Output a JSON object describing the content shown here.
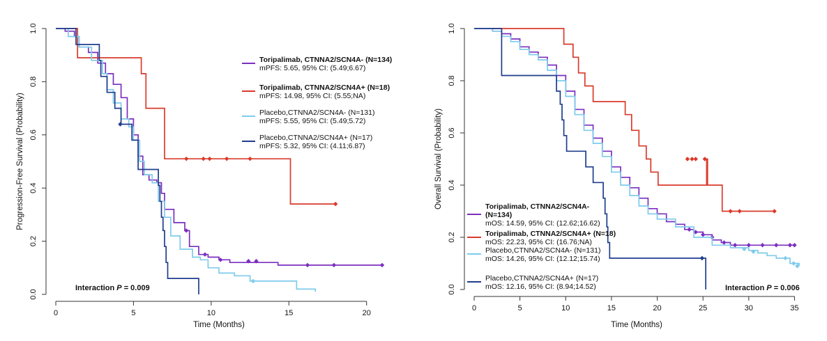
{
  "chart_data": [
    {
      "type": "line",
      "subtype": "kaplan-meier",
      "title": "",
      "xlabel": "Time (Months)",
      "ylabel": "Progression-Free Survival (Probability)",
      "xlim": [
        0,
        21
      ],
      "ylim": [
        0,
        1
      ],
      "xticks": [
        "0",
        "5",
        "10",
        "15",
        "20"
      ],
      "yticks": [
        "0.0",
        "0.2",
        "0.4",
        "0.6",
        "0.8",
        "1.0"
      ],
      "annotation": "Interaction P = 0.009",
      "legend_position": "top-right",
      "series": [
        {
          "name": "Toripalimab, CTNNA2/SCN4A- (N=134)",
          "stat": "mPFS: 5.65, 95% CI: (5.49;6.67)",
          "color": "#7b2fbe",
          "bold": true,
          "points": [
            [
              0,
              1
            ],
            [
              0.6,
              0.99
            ],
            [
              1.2,
              0.97
            ],
            [
              1.5,
              0.93
            ],
            [
              2.1,
              0.91
            ],
            [
              2.7,
              0.87
            ],
            [
              3.2,
              0.83
            ],
            [
              3.7,
              0.79
            ],
            [
              4.2,
              0.74
            ],
            [
              4.6,
              0.66
            ],
            [
              5.0,
              0.6
            ],
            [
              5.3,
              0.52
            ],
            [
              5.6,
              0.45
            ],
            [
              6.0,
              0.43
            ],
            [
              6.5,
              0.42
            ],
            [
              6.8,
              0.38
            ],
            [
              7.0,
              0.32
            ],
            [
              7.6,
              0.27
            ],
            [
              8.3,
              0.24
            ],
            [
              8.6,
              0.18
            ],
            [
              9.2,
              0.15
            ],
            [
              9.8,
              0.14
            ],
            [
              10.5,
              0.13
            ],
            [
              11.2,
              0.12
            ],
            [
              12.3,
              0.12
            ],
            [
              14.2,
              0.12
            ],
            [
              14.3,
              0.11
            ],
            [
              15.0,
              0.11
            ],
            [
              21.0,
              0.11
            ]
          ],
          "censors": [
            [
              8.4,
              0.24
            ],
            [
              9.6,
              0.15
            ],
            [
              10.6,
              0.13
            ],
            [
              12.4,
              0.125
            ],
            [
              12.9,
              0.125
            ],
            [
              16.2,
              0.11
            ],
            [
              17.9,
              0.11
            ],
            [
              21.0,
              0.11
            ]
          ]
        },
        {
          "name": "Toripalimab, CTNNA2/SCN4A+ (N=18)",
          "stat": "mPFS: 14.98, 95% CI: (5.55;NA)",
          "color": "#d93a2b",
          "bold": true,
          "points": [
            [
              0,
              1
            ],
            [
              1.4,
              0.89
            ],
            [
              5.3,
              0.89
            ],
            [
              5.5,
              0.83
            ],
            [
              5.8,
              0.7
            ],
            [
              6.9,
              0.7
            ],
            [
              7.0,
              0.51
            ],
            [
              15.0,
              0.51
            ],
            [
              15.1,
              0.34
            ],
            [
              18.0,
              0.34
            ]
          ],
          "censors": [
            [
              8.4,
              0.51
            ],
            [
              9.5,
              0.51
            ],
            [
              9.9,
              0.51
            ],
            [
              11.0,
              0.51
            ],
            [
              12.5,
              0.51
            ],
            [
              18.0,
              0.34
            ]
          ]
        },
        {
          "name": "Placebo,CTNNA2/SCN4A- (N=131)",
          "stat": "mPFS: 5.55, 95% CI: (5.49;5.72)",
          "color": "#7fcbec",
          "bold": false,
          "points": [
            [
              0,
              1
            ],
            [
              0.8,
              0.97
            ],
            [
              1.5,
              0.93
            ],
            [
              2.3,
              0.88
            ],
            [
              3.0,
              0.83
            ],
            [
              3.3,
              0.77
            ],
            [
              3.7,
              0.72
            ],
            [
              4.2,
              0.66
            ],
            [
              4.7,
              0.63
            ],
            [
              5.0,
              0.58
            ],
            [
              5.4,
              0.5
            ],
            [
              5.7,
              0.45
            ],
            [
              6.2,
              0.42
            ],
            [
              6.6,
              0.35
            ],
            [
              7.0,
              0.29
            ],
            [
              7.4,
              0.22
            ],
            [
              8.0,
              0.17
            ],
            [
              8.8,
              0.14
            ],
            [
              9.3,
              0.13
            ],
            [
              9.8,
              0.1
            ],
            [
              10.5,
              0.08
            ],
            [
              11.5,
              0.07
            ],
            [
              12.5,
              0.05
            ],
            [
              14.0,
              0.05
            ],
            [
              15.5,
              0.02
            ],
            [
              16.7,
              0.01
            ]
          ],
          "censors": [
            [
              12.7,
              0.05
            ]
          ]
        },
        {
          "name": "Placebo,CTNNA2/SCN4A+ (N=17)",
          "stat": "mPFS: 5.32, 95% CI: (4.11;6.87)",
          "color": "#1f3d8c",
          "bold": false,
          "points": [
            [
              0,
              1
            ],
            [
              1.3,
              0.94
            ],
            [
              2.8,
              0.88
            ],
            [
              2.9,
              0.82
            ],
            [
              3.3,
              0.76
            ],
            [
              3.8,
              0.7
            ],
            [
              4.2,
              0.64
            ],
            [
              4.9,
              0.58
            ],
            [
              5.3,
              0.47
            ],
            [
              6.6,
              0.41
            ],
            [
              6.7,
              0.35
            ],
            [
              6.8,
              0.29
            ],
            [
              6.9,
              0.24
            ],
            [
              7.0,
              0.18
            ],
            [
              7.1,
              0.12
            ],
            [
              7.2,
              0.06
            ],
            [
              9.2,
              0.06
            ],
            [
              9.2,
              0.0
            ]
          ],
          "censors": [
            [
              4.15,
              0.64
            ]
          ]
        }
      ]
    },
    {
      "type": "line",
      "subtype": "kaplan-meier",
      "title": "",
      "xlabel": "Time (Months)",
      "ylabel": "Overall Survival (Probability)",
      "xlim": [
        0,
        35.5
      ],
      "ylim": [
        0,
        1
      ],
      "xticks": [
        "0",
        "5",
        "10",
        "15",
        "20",
        "25",
        "30",
        "35"
      ],
      "yticks": [
        "0.0",
        "0.2",
        "0.4",
        "0.6",
        "0.8",
        "1.0"
      ],
      "annotation": "Interaction P = 0.006",
      "legend_position": "bottom-left",
      "series": [
        {
          "name": "Toripalimab, CTNNA2/SCN4A-",
          "name_line2": "(N=134)",
          "stat": "mOS: 14.59, 95% CI: (12.62;16.62)",
          "color": "#7b2fbe",
          "bold": true,
          "points": [
            [
              0,
              1
            ],
            [
              2.0,
              0.99
            ],
            [
              3.0,
              0.98
            ],
            [
              4.0,
              0.96
            ],
            [
              5.0,
              0.93
            ],
            [
              6.0,
              0.91
            ],
            [
              7.0,
              0.89
            ],
            [
              8.0,
              0.86
            ],
            [
              9.0,
              0.82
            ],
            [
              10.0,
              0.76
            ],
            [
              11.0,
              0.69
            ],
            [
              12.0,
              0.63
            ],
            [
              13.0,
              0.58
            ],
            [
              14.0,
              0.53
            ],
            [
              15.0,
              0.47
            ],
            [
              16.0,
              0.43
            ],
            [
              17.0,
              0.39
            ],
            [
              18.0,
              0.35
            ],
            [
              19.0,
              0.31
            ],
            [
              20.0,
              0.29
            ],
            [
              21.0,
              0.26
            ],
            [
              22.0,
              0.25
            ],
            [
              23.0,
              0.23
            ],
            [
              24.0,
              0.22
            ],
            [
              25.0,
              0.21
            ],
            [
              26.0,
              0.19
            ],
            [
              27.0,
              0.18
            ],
            [
              28.0,
              0.17
            ],
            [
              35.0,
              0.17
            ]
          ],
          "censors": [
            [
              23.5,
              0.23
            ],
            [
              24.2,
              0.22
            ],
            [
              25.0,
              0.21
            ],
            [
              26.0,
              0.2
            ],
            [
              27.3,
              0.18
            ],
            [
              28.5,
              0.17
            ],
            [
              30.0,
              0.17
            ],
            [
              31.5,
              0.17
            ],
            [
              33.0,
              0.17
            ],
            [
              34.5,
              0.17
            ],
            [
              35.0,
              0.17
            ]
          ]
        },
        {
          "name": "Toripalimab, CTNNA2/SCN4A+ (N=18)",
          "name_line2": "",
          "stat": "mOS: 22.23, 95% CI: (16.76;NA)",
          "color": "#d93a2b",
          "bold": true,
          "points": [
            [
              0,
              1
            ],
            [
              9.7,
              1
            ],
            [
              9.8,
              0.94
            ],
            [
              10.8,
              0.89
            ],
            [
              11.4,
              0.83
            ],
            [
              12.1,
              0.78
            ],
            [
              13.0,
              0.72
            ],
            [
              16.4,
              0.72
            ],
            [
              16.5,
              0.67
            ],
            [
              17.2,
              0.61
            ],
            [
              18.0,
              0.55
            ],
            [
              18.8,
              0.5
            ],
            [
              19.3,
              0.45
            ],
            [
              20.1,
              0.4
            ],
            [
              24.0,
              0.4
            ],
            [
              24.2,
              0.4
            ],
            [
              25.4,
              0.5
            ],
            [
              25.5,
              0.4
            ],
            [
              27.0,
              0.4
            ],
            [
              27.1,
              0.3
            ],
            [
              32.8,
              0.3
            ]
          ],
          "censors": [
            [
              23.3,
              0.5
            ],
            [
              23.8,
              0.5
            ],
            [
              24.2,
              0.5
            ],
            [
              25.2,
              0.5
            ],
            [
              28.0,
              0.3
            ],
            [
              29.0,
              0.3
            ],
            [
              32.8,
              0.3
            ]
          ]
        },
        {
          "name": "Placebo,CTNNA2/SCN4A- (N=131)",
          "name_line2": "",
          "stat": "mOS: 14.26, 95% CI: (12.12;15.74)",
          "color": "#7fcbec",
          "bold": false,
          "points": [
            [
              0,
              1
            ],
            [
              2.0,
              0.99
            ],
            [
              3.0,
              0.97
            ],
            [
              4.0,
              0.95
            ],
            [
              5.0,
              0.92
            ],
            [
              6.0,
              0.9
            ],
            [
              7.0,
              0.88
            ],
            [
              8.0,
              0.84
            ],
            [
              9.0,
              0.8
            ],
            [
              10.0,
              0.74
            ],
            [
              11.0,
              0.67
            ],
            [
              12.0,
              0.61
            ],
            [
              13.0,
              0.56
            ],
            [
              14.0,
              0.51
            ],
            [
              15.0,
              0.45
            ],
            [
              16.0,
              0.4
            ],
            [
              17.0,
              0.36
            ],
            [
              18.0,
              0.32
            ],
            [
              19.0,
              0.29
            ],
            [
              20.0,
              0.27
            ],
            [
              22.0,
              0.24
            ],
            [
              24.0,
              0.2
            ],
            [
              26.0,
              0.17
            ],
            [
              28.0,
              0.16
            ],
            [
              30.0,
              0.15
            ],
            [
              31.0,
              0.14
            ],
            [
              32.0,
              0.13
            ],
            [
              33.0,
              0.12
            ],
            [
              34.5,
              0.1
            ],
            [
              35.5,
              0.09
            ]
          ],
          "censors": [
            [
              29.5,
              0.155
            ],
            [
              30.5,
              0.145
            ],
            [
              34.0,
              0.12
            ],
            [
              34.9,
              0.1
            ],
            [
              35.3,
              0.09
            ]
          ]
        },
        {
          "name": "Placebo,CTNNA2/SCN4A+ (N=17)",
          "name_line2": "",
          "stat": "mOS: 12.16, 95% CI: (8.94;14.52)",
          "color": "#1f3d8c",
          "bold": false,
          "points": [
            [
              0,
              1
            ],
            [
              2.9,
              1
            ],
            [
              3.0,
              0.82
            ],
            [
              8.9,
              0.82
            ],
            [
              9.0,
              0.76
            ],
            [
              9.4,
              0.71
            ],
            [
              9.6,
              0.65
            ],
            [
              9.8,
              0.59
            ],
            [
              10.1,
              0.53
            ],
            [
              12.1,
              0.53
            ],
            [
              12.2,
              0.47
            ],
            [
              13.0,
              0.41
            ],
            [
              14.1,
              0.35
            ],
            [
              14.3,
              0.29
            ],
            [
              14.5,
              0.24
            ],
            [
              14.6,
              0.18
            ],
            [
              14.8,
              0.12
            ],
            [
              25.3,
              0.12
            ],
            [
              25.3,
              0.0
            ]
          ],
          "censors": [
            [
              24.9,
              0.12
            ]
          ]
        }
      ]
    }
  ]
}
